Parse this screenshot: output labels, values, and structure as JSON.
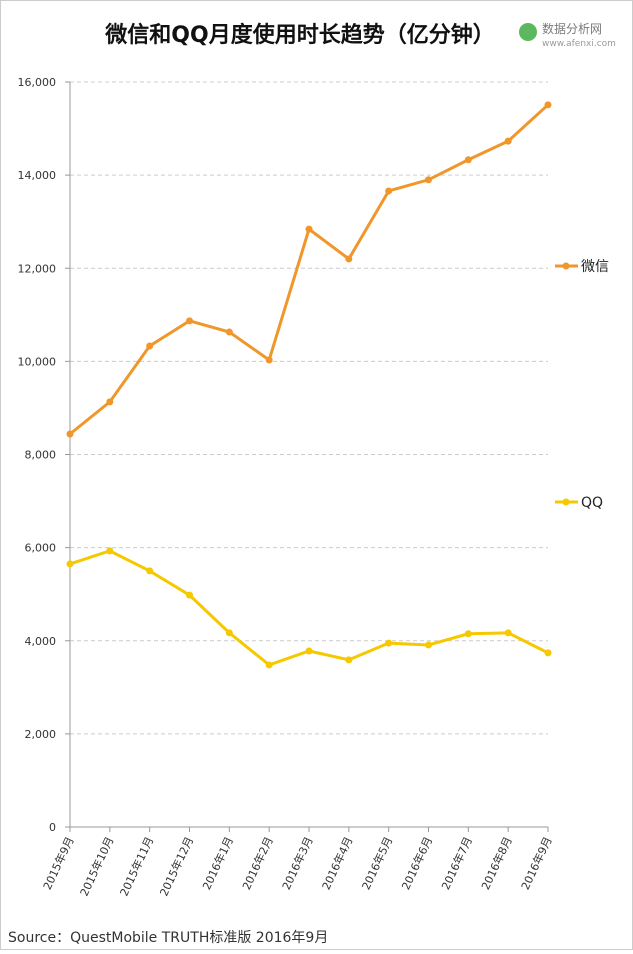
{
  "chart_data": {
    "type": "line",
    "title": "微信和QQ月度使用时长趋势（亿分钟）",
    "watermark": "数据分析网",
    "watermark_url": "www.afenxi.com",
    "source": "Source：QuestMobile TRUTH标准版 2016年9月",
    "categories": [
      "2015年9月",
      "2015年10月",
      "2015年11月",
      "2015年12月",
      "2016年1月",
      "2016年2月",
      "2016年3月",
      "2016年4月",
      "2016年5月",
      "2016年6月",
      "2016年7月",
      "2016年8月",
      "2016年9月"
    ],
    "series": [
      {
        "name": "微信",
        "color": "#f0962a",
        "values": [
          8440,
          9130,
          10330,
          10870,
          10630,
          10030,
          12840,
          12200,
          13660,
          13900,
          14330,
          14730,
          15510
        ]
      },
      {
        "name": "QQ",
        "color": "#f5c800",
        "values": [
          5650,
          5930,
          5500,
          4980,
          4170,
          3480,
          3780,
          3590,
          3950,
          3910,
          4150,
          4170,
          3740
        ]
      }
    ],
    "ylim": [
      0,
      16000
    ],
    "yticks": [
      0,
      {
        "value": 2000,
        "label": "2,000"
      },
      {
        "value": 4000,
        "label": "4,000"
      },
      {
        "value": 6000,
        "label": "6,000"
      },
      {
        "value": 8000,
        "label": "8,000"
      },
      {
        "value": 10000,
        "label": "10,000"
      },
      {
        "value": 12000,
        "label": "12,000"
      },
      {
        "value": 14000,
        "label": "14,000"
      },
      {
        "value": 16000,
        "label": "16,000"
      }
    ],
    "grid": true
  }
}
